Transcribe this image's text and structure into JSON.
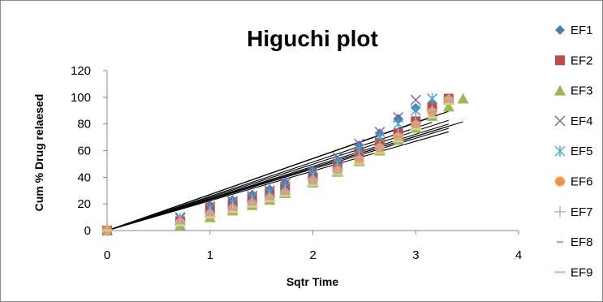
{
  "chart_data": {
    "type": "scatter",
    "title": "Higuchi plot",
    "xlabel": "Sqtr Time",
    "ylabel": "Cum % Drug relaesed",
    "xlim": [
      0,
      4
    ],
    "ylim": [
      0,
      120
    ],
    "x_ticks": [
      "0",
      "1",
      "2",
      "3",
      "4"
    ],
    "y_ticks": [
      "0",
      "20",
      "40",
      "60",
      "80",
      "100",
      "120"
    ],
    "grid": false,
    "legend_position": "right",
    "trendlines": "linear",
    "series": [
      {
        "name": "EF1",
        "marker": "diamond",
        "color": "#4a7ebb",
        "x": [
          0,
          0.71,
          1,
          1.22,
          1.41,
          1.58,
          1.73,
          2,
          2.24,
          2.45,
          2.65,
          2.83,
          3,
          3.16,
          3.32
        ],
        "y": [
          0,
          8,
          19,
          23,
          27,
          31,
          36,
          45,
          52,
          64,
          73,
          84,
          92,
          96,
          98
        ]
      },
      {
        "name": "EF2",
        "marker": "square",
        "color": "#be4b48",
        "x": [
          0,
          0.71,
          1,
          1.22,
          1.41,
          1.58,
          1.73,
          2,
          2.24,
          2.45,
          2.65,
          2.83,
          3,
          3.16,
          3.32
        ],
        "y": [
          0,
          7,
          17,
          20,
          24,
          28,
          32,
          40,
          48,
          58,
          66,
          73,
          82,
          92,
          99
        ]
      },
      {
        "name": "EF3",
        "marker": "triangle",
        "color": "#98b954",
        "x": [
          0,
          0.71,
          1,
          1.22,
          1.41,
          1.58,
          1.73,
          2,
          2.24,
          2.45,
          2.65,
          2.83,
          3,
          3.16,
          3.32,
          3.46
        ],
        "y": [
          0,
          4,
          10,
          15,
          19,
          23,
          28,
          36,
          44,
          52,
          60,
          68,
          77,
          86,
          93,
          99
        ]
      },
      {
        "name": "EF4",
        "marker": "x",
        "color": "#7d60a0",
        "x": [
          0,
          0.71,
          1,
          1.22,
          1.41,
          1.58,
          1.73,
          2,
          2.24,
          2.45,
          2.65,
          2.83,
          3,
          3.16
        ],
        "y": [
          0,
          10,
          18,
          22,
          26,
          30,
          35,
          44,
          55,
          65,
          74,
          85,
          98,
          99
        ]
      },
      {
        "name": "EF5",
        "marker": "asterisk",
        "color": "#46aac5",
        "x": [
          0,
          0.71,
          1,
          1.22,
          1.41,
          1.58,
          1.73,
          2,
          2.24,
          2.45,
          2.65,
          2.83,
          3,
          3.16
        ],
        "y": [
          0,
          9,
          17,
          21,
          25,
          29,
          33,
          42,
          51,
          61,
          70,
          80,
          90,
          99
        ]
      },
      {
        "name": "EF6",
        "marker": "circle",
        "color": "#f69240",
        "x": [
          0,
          0.71,
          1,
          1.22,
          1.41,
          1.58,
          1.73,
          2,
          2.24,
          2.45,
          2.65,
          2.83,
          3,
          3.16,
          3.32
        ],
        "y": [
          0,
          6,
          12,
          16,
          20,
          24,
          28,
          37,
          45,
          53,
          62,
          70,
          79,
          89,
          98
        ]
      },
      {
        "name": "EF7",
        "marker": "plus",
        "color": "#9fb8e0",
        "x": [
          0,
          0.71,
          1,
          1.22,
          1.41,
          1.58,
          1.73,
          2,
          2.24,
          2.45,
          2.65,
          2.83,
          3,
          3.16,
          3.32
        ],
        "y": [
          0,
          7,
          13,
          17,
          21,
          25,
          29,
          38,
          46,
          55,
          63,
          72,
          81,
          90,
          99
        ]
      },
      {
        "name": "EF8",
        "marker": "dash",
        "color": "#e39b9a",
        "x": [
          0,
          0.71,
          1,
          1.22,
          1.41,
          1.58,
          1.73,
          2,
          2.24,
          2.45,
          2.65,
          2.83,
          3,
          3.16,
          3.32
        ],
        "y": [
          0,
          5,
          11,
          15,
          19,
          23,
          27,
          36,
          44,
          52,
          61,
          69,
          78,
          87,
          97
        ]
      },
      {
        "name": "EF9",
        "marker": "longdash",
        "color": "#c4d79b",
        "x": [
          0,
          0.71,
          1,
          1.22,
          1.41,
          1.58,
          1.73,
          2,
          2.24,
          2.45,
          2.65,
          2.83,
          3,
          3.16,
          3.32
        ],
        "y": [
          0,
          4,
          10,
          14,
          18,
          22,
          26,
          34,
          42,
          50,
          58,
          67,
          76,
          85,
          95
        ]
      }
    ]
  }
}
